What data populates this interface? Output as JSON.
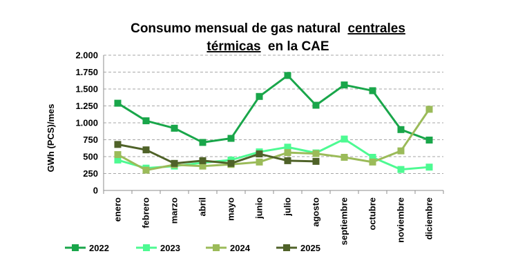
{
  "chart_data": {
    "type": "line",
    "title_line1": "Consumo mensual de gas natural",
    "title_line1_underlined": "centrales",
    "title_line2_underlined": "térmicas",
    "title_line2": "en la CAE",
    "ylabel": "GWh (PCS)/mes",
    "xlabel": "",
    "ylim": [
      0,
      2000
    ],
    "y_ticks": [
      0,
      250,
      500,
      750,
      1000,
      1250,
      1500,
      1750,
      2000
    ],
    "y_tick_labels": [
      "0",
      "250",
      "500",
      "750",
      "1.000",
      "1.250",
      "1.500",
      "1.750",
      "2.000"
    ],
    "grid": true,
    "legend_position": "bottom",
    "categories": [
      "enero",
      "febrero",
      "marzo",
      "abril",
      "mayo",
      "junio",
      "julio",
      "agosto",
      "septiembre",
      "octubre",
      "noviembre",
      "diciembre"
    ],
    "series": [
      {
        "name": "2022",
        "color": "#19a64a",
        "values": [
          1290,
          1030,
          920,
          710,
          770,
          1390,
          1700,
          1260,
          1560,
          1475,
          900,
          745
        ]
      },
      {
        "name": "2023",
        "color": "#4dfa92",
        "values": [
          450,
          330,
          360,
          410,
          450,
          570,
          640,
          555,
          760,
          490,
          310,
          345
        ]
      },
      {
        "name": "2024",
        "color": "#9bbb59",
        "values": [
          530,
          300,
          380,
          360,
          385,
          420,
          560,
          545,
          490,
          420,
          585,
          1200
        ]
      },
      {
        "name": "2025",
        "color": "#4f6228",
        "values": [
          680,
          600,
          400,
          440,
          400,
          540,
          440,
          430,
          null,
          null,
          null,
          null
        ]
      }
    ]
  }
}
